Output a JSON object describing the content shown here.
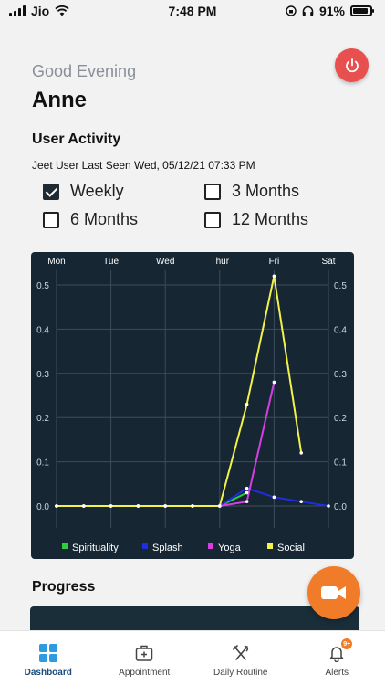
{
  "status_bar": {
    "carrier": "Jio",
    "time": "7:48 PM",
    "battery_percent": "91%",
    "battery_level": 0.91,
    "icons": [
      "signal-icon",
      "wifi-icon",
      "lock-rotation-icon",
      "headphones-icon",
      "battery-icon"
    ]
  },
  "header": {
    "greeting": "Good Evening",
    "user_name": "Anne",
    "power_icon": "power-icon",
    "power_color": "#e85050"
  },
  "activity": {
    "title": "User Activity",
    "last_seen": "Jeet User Last Seen Wed, 05/12/21 07:33 PM",
    "options": [
      {
        "label": "Weekly",
        "checked": true
      },
      {
        "label": "3 Months",
        "checked": false
      },
      {
        "label": "6 Months",
        "checked": false
      },
      {
        "label": "12 Months",
        "checked": false
      }
    ]
  },
  "chart_data": {
    "type": "line",
    "categories": [
      "Mon",
      "",
      "Tue",
      "",
      "Wed",
      "",
      "Thur",
      "",
      "Fri",
      "",
      "Sat"
    ],
    "x_tick_labels": [
      "Mon",
      "Tue",
      "Wed",
      "Thur",
      "Fri",
      "Sat"
    ],
    "ylim": [
      0,
      0.5
    ],
    "yticks": [
      "0.0",
      "0.1",
      "0.2",
      "0.3",
      "0.4",
      "0.5"
    ],
    "grid": true,
    "legend_position": "bottom",
    "background": "#162633",
    "series": [
      {
        "name": "Spirituality",
        "color": "#2ecc40",
        "values": [
          0,
          0,
          0,
          0,
          0,
          0,
          0,
          0.03,
          null,
          null,
          null
        ]
      },
      {
        "name": "Splash",
        "color": "#1f2ee0",
        "values": [
          0,
          0,
          0,
          0,
          0,
          0,
          0,
          0.04,
          0.02,
          0.01,
          0
        ]
      },
      {
        "name": "Yoga",
        "color": "#d63ee0",
        "values": [
          0,
          0,
          0,
          0,
          0,
          0,
          0,
          0.01,
          0.28,
          null,
          null
        ]
      },
      {
        "name": "Social",
        "color": "#f2f24a",
        "values": [
          0,
          0,
          0,
          0,
          0,
          0,
          0,
          0.23,
          0.52,
          0.12,
          null
        ]
      }
    ]
  },
  "progress": {
    "title": "Progress"
  },
  "video_button": {
    "icon": "video-camera-icon",
    "color": "#f07c2a"
  },
  "bottom_nav": {
    "items": [
      {
        "label": "Dashboard",
        "icon": "dashboard-grid-icon",
        "active": true
      },
      {
        "label": "Appointment",
        "icon": "medical-bag-icon",
        "active": false
      },
      {
        "label": "Daily Routine",
        "icon": "fork-knife-icon",
        "active": false
      },
      {
        "label": "Alerts",
        "icon": "bell-icon",
        "active": false,
        "badge": "9+"
      }
    ]
  }
}
